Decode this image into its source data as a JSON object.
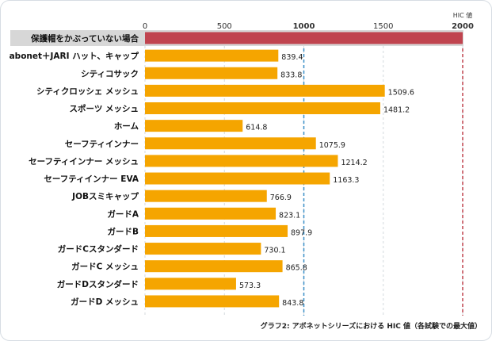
{
  "chart_data": {
    "type": "bar",
    "orientation": "horizontal",
    "title": "",
    "caption": "グラフ2: アボネットシリーズにおける HIC 値（各試験での最大値）",
    "unit_label": "HIC 値",
    "xlim": [
      0,
      2000
    ],
    "x_ticks": [
      "0",
      "500",
      "1000",
      "1500",
      "2000"
    ],
    "grid": true,
    "reference_lines": [
      {
        "value": 1000,
        "color": "#3a8fc8",
        "style": "dashed"
      },
      {
        "value": 2000,
        "color": "#c0444f",
        "style": "dashed"
      }
    ],
    "categories": [
      "保護帽をかぶっていない場合",
      "abonet＋JARI ハット、キャップ",
      "シティコサック",
      "シティクロッシェ メッシュ",
      "スポーツ メッシュ",
      "ホーム",
      "セーフティインナー",
      "セーフティインナー メッシュ",
      "セーフティインナー EVA",
      "JOBスミキャップ",
      "ガードA",
      "ガードB",
      "ガードCスタンダード",
      "ガードC メッシュ",
      "ガードDスタンダード",
      "ガードD メッシュ"
    ],
    "values": [
      2000,
      839.4,
      833.8,
      1509.6,
      1481.2,
      614.8,
      1075.9,
      1214.2,
      1163.3,
      766.9,
      823.1,
      897.9,
      730.1,
      865.8,
      573.3,
      843.8
    ],
    "value_labels": [
      "",
      "839.4",
      "833.8",
      "1509.6",
      "1481.2",
      "614.8",
      "1075.9",
      "1214.2",
      "1163.3",
      "766.9",
      "823.1",
      "897.9",
      "730.1",
      "865.8",
      "573.3",
      "843.8"
    ],
    "bar_colors": [
      "#c0444f",
      "#f5a500",
      "#f5a500",
      "#f5a500",
      "#f5a500",
      "#f5a500",
      "#f5a500",
      "#f5a500",
      "#f5a500",
      "#f5a500",
      "#f5a500",
      "#f5a500",
      "#f5a500",
      "#f5a500",
      "#f5a500",
      "#f5a500"
    ]
  }
}
